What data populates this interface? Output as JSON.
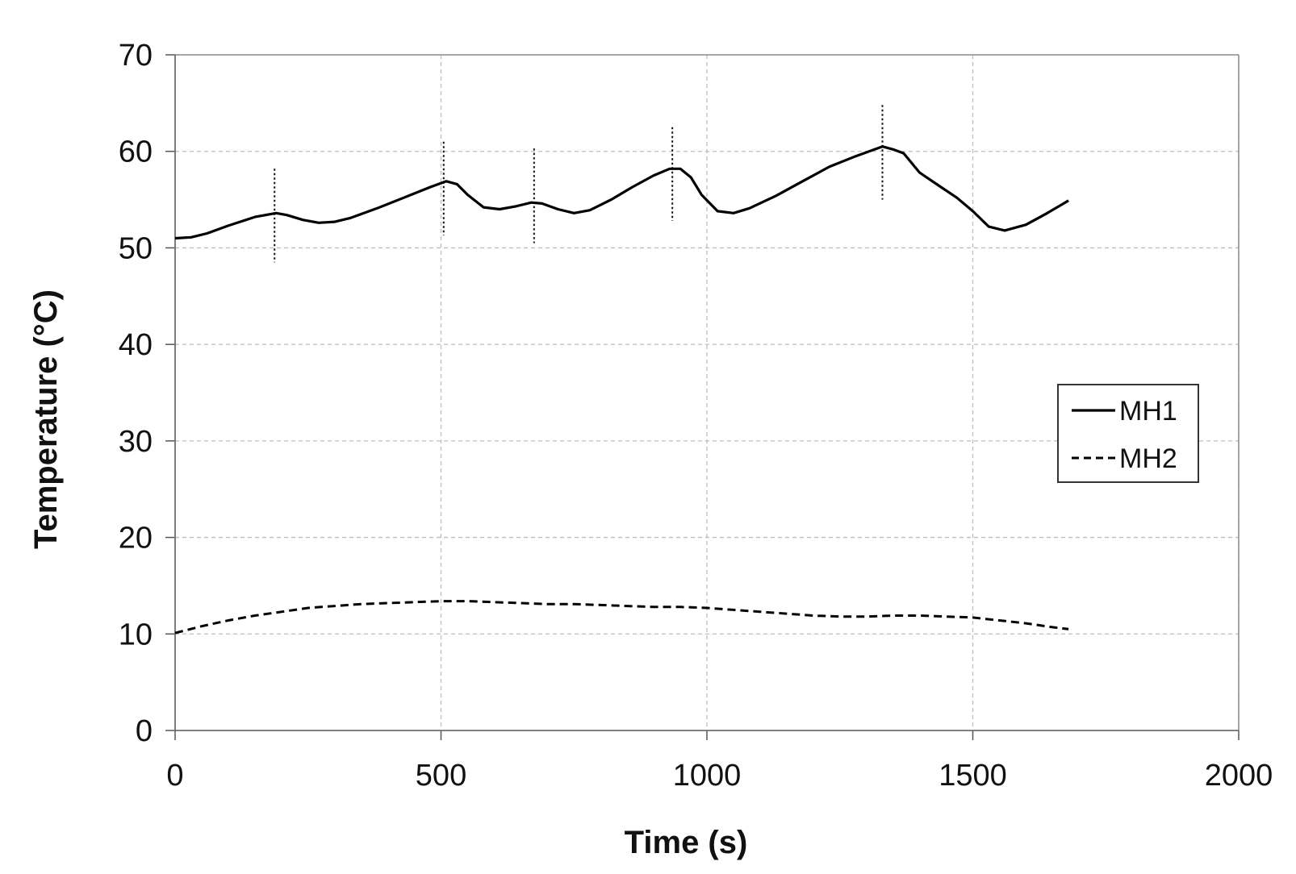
{
  "chart_data": {
    "type": "line",
    "title": "",
    "xlabel": "Time (s)",
    "ylabel": "Temperature (°C)",
    "xlim": [
      0,
      2000
    ],
    "ylim": [
      0,
      70
    ],
    "xticks": [
      0,
      500,
      1000,
      1500,
      2000
    ],
    "yticks": [
      0,
      10,
      20,
      30,
      40,
      50,
      60,
      70
    ],
    "grid": true,
    "legend_position": "right",
    "series": [
      {
        "name": "MH1",
        "style": "solid",
        "color": "#000000",
        "x": [
          0,
          30,
          60,
          100,
          150,
          190,
          210,
          240,
          270,
          300,
          330,
          380,
          430,
          480,
          510,
          530,
          550,
          580,
          610,
          640,
          670,
          690,
          720,
          750,
          780,
          820,
          860,
          900,
          930,
          950,
          970,
          990,
          1020,
          1050,
          1080,
          1130,
          1180,
          1230,
          1280,
          1330,
          1350,
          1370,
          1400,
          1440,
          1470,
          1500,
          1530,
          1560,
          1600,
          1640,
          1680
        ],
        "y": [
          51.0,
          51.1,
          51.5,
          52.3,
          53.2,
          53.6,
          53.4,
          52.9,
          52.6,
          52.7,
          53.1,
          54.1,
          55.2,
          56.3,
          56.9,
          56.6,
          55.5,
          54.2,
          54.0,
          54.3,
          54.7,
          54.6,
          54.0,
          53.6,
          53.9,
          55.0,
          56.3,
          57.5,
          58.2,
          58.2,
          57.3,
          55.5,
          53.8,
          53.6,
          54.1,
          55.4,
          56.9,
          58.4,
          59.5,
          60.5,
          60.2,
          59.8,
          57.8,
          56.3,
          55.2,
          53.8,
          52.2,
          51.8,
          52.4,
          53.6,
          54.9
        ]
      },
      {
        "name": "MH2",
        "style": "dashed",
        "color": "#000000",
        "x": [
          0,
          50,
          100,
          150,
          200,
          250,
          300,
          350,
          400,
          450,
          500,
          550,
          600,
          650,
          700,
          750,
          800,
          850,
          900,
          950,
          1000,
          1050,
          1100,
          1150,
          1200,
          1250,
          1300,
          1350,
          1400,
          1450,
          1500,
          1550,
          1600,
          1650,
          1680
        ],
        "y": [
          10.1,
          10.8,
          11.4,
          11.9,
          12.3,
          12.7,
          12.9,
          13.1,
          13.2,
          13.3,
          13.4,
          13.4,
          13.3,
          13.2,
          13.1,
          13.1,
          13.0,
          12.9,
          12.8,
          12.8,
          12.7,
          12.5,
          12.3,
          12.1,
          11.9,
          11.8,
          11.8,
          11.9,
          11.9,
          11.8,
          11.7,
          11.4,
          11.1,
          10.7,
          10.5
        ]
      }
    ],
    "markers": [
      {
        "x": 187,
        "y0": 48.5,
        "y1": 58.2
      },
      {
        "x": 505,
        "y0": 51.3,
        "y1": 61.0
      },
      {
        "x": 675,
        "y0": 50.5,
        "y1": 60.3
      },
      {
        "x": 935,
        "y0": 52.8,
        "y1": 62.5
      },
      {
        "x": 1330,
        "y0": 55.0,
        "y1": 64.8
      }
    ]
  },
  "legend": {
    "items": [
      {
        "label": "MH1",
        "style": "solid"
      },
      {
        "label": "MH2",
        "style": "dashed"
      }
    ]
  }
}
